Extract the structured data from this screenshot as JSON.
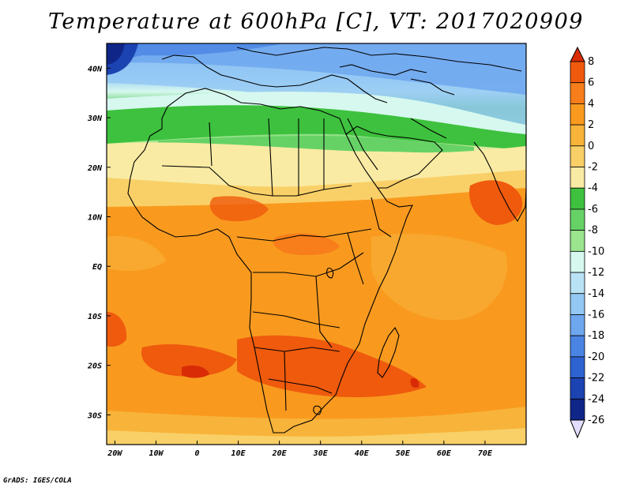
{
  "title": "Temperature at 600hPa [C], VT: 2017020909",
  "credit": "GrADS: IGES/COLA",
  "map": {
    "lon_range": [
      -22,
      80
    ],
    "lat_range": [
      -36,
      45
    ],
    "lon_ticks": [
      {
        "value": -20,
        "label": "20W"
      },
      {
        "value": -10,
        "label": "10W"
      },
      {
        "value": 0,
        "label": "0"
      },
      {
        "value": 10,
        "label": "10E"
      },
      {
        "value": 20,
        "label": "20E"
      },
      {
        "value": 30,
        "label": "30E"
      },
      {
        "value": 40,
        "label": "40E"
      },
      {
        "value": 50,
        "label": "50E"
      },
      {
        "value": 60,
        "label": "60E"
      },
      {
        "value": 70,
        "label": "70E"
      }
    ],
    "lat_ticks": [
      {
        "value": 40,
        "label": "40N"
      },
      {
        "value": 30,
        "label": "30N"
      },
      {
        "value": 20,
        "label": "20N"
      },
      {
        "value": 10,
        "label": "10N"
      },
      {
        "value": 0,
        "label": "EQ"
      },
      {
        "value": -10,
        "label": "10S"
      },
      {
        "value": -20,
        "label": "20S"
      },
      {
        "value": -30,
        "label": "30S"
      }
    ]
  },
  "colorbar": {
    "labels": [
      "8",
      "6",
      "4",
      "2",
      "0",
      "-2",
      "-4",
      "-6",
      "-8",
      "-10",
      "-12",
      "-14",
      "-16",
      "-18",
      "-20",
      "-22",
      "-24",
      "-26"
    ],
    "colors": [
      "#d92b05",
      "#ef5a0d",
      "#f77e1a",
      "#f99a1f",
      "#f8b43a",
      "#f9d068",
      "#faeba4",
      "#3ec13e",
      "#66d266",
      "#9ae58e",
      "#d6f8ef",
      "#b9e2f5",
      "#94c8f4",
      "#6ea7ee",
      "#4a85e4",
      "#2d63d1",
      "#1c43b2",
      "#0f2588",
      "#1a1866"
    ]
  }
}
